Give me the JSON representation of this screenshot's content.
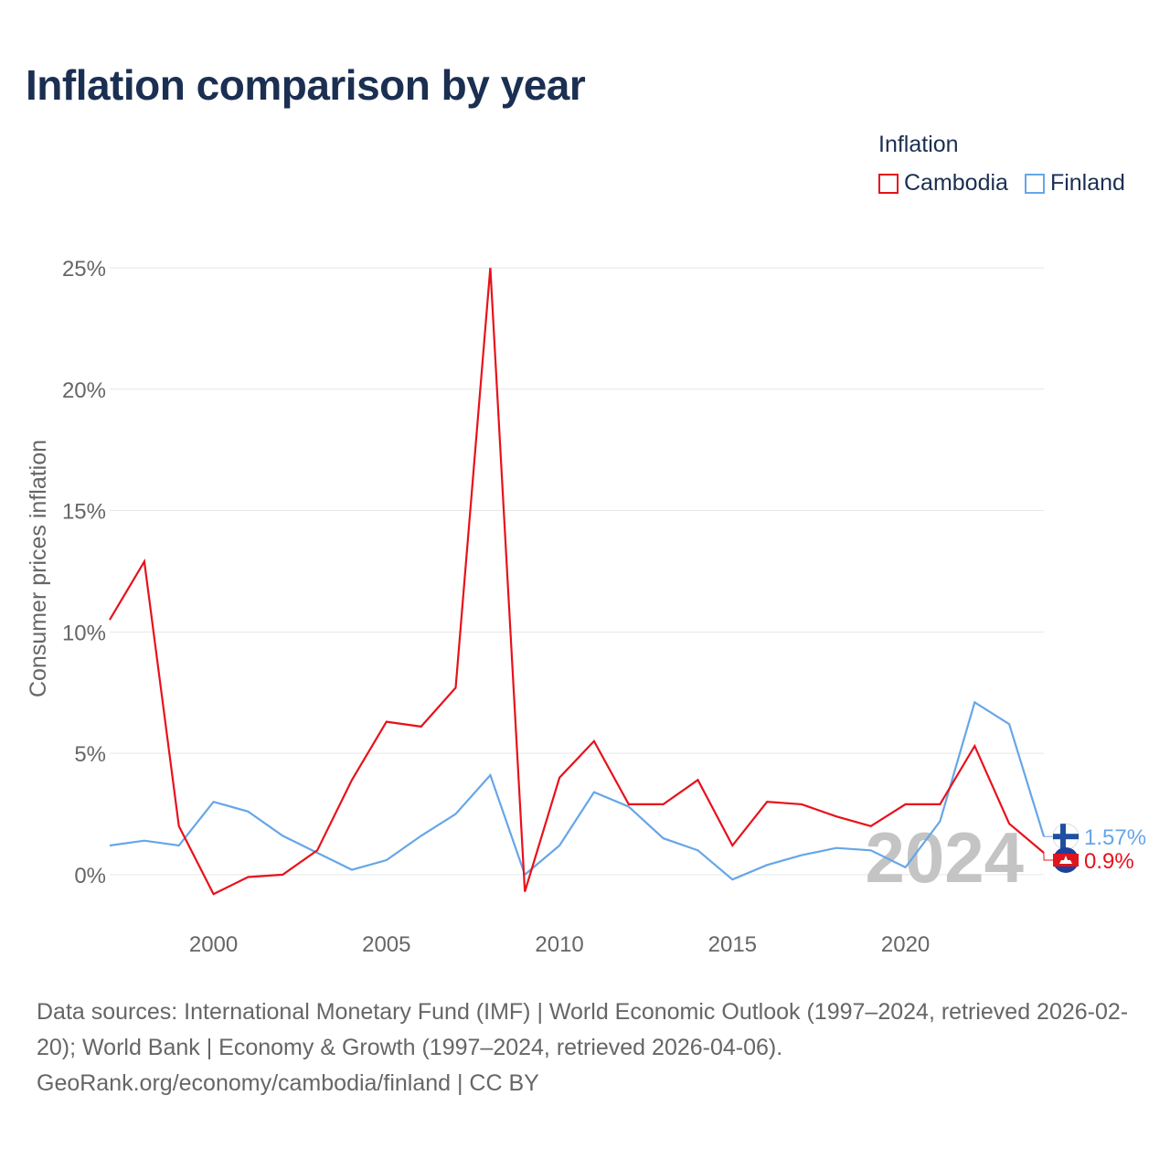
{
  "title": "Inflation comparison by year",
  "legend": {
    "title": "Inflation",
    "items": [
      {
        "label": "Cambodia",
        "color": "#e8111b"
      },
      {
        "label": "Finland",
        "color": "#66a6e8"
      }
    ]
  },
  "chart_data": {
    "type": "line",
    "title": "Inflation comparison by year",
    "xlabel": "",
    "ylabel": "Consumer prices inflation",
    "xlim": [
      1997,
      2024
    ],
    "ylim": [
      -2,
      25
    ],
    "y_ticks": [
      0,
      5,
      10,
      15,
      20,
      25
    ],
    "y_tick_labels": [
      "0%",
      "5%",
      "10%",
      "15%",
      "20%",
      "25%"
    ],
    "x_ticks": [
      2000,
      2005,
      2010,
      2015,
      2020
    ],
    "x_tick_labels": [
      "2000",
      "2005",
      "2010",
      "2015",
      "2020"
    ],
    "grid": true,
    "year_watermark": "2024",
    "x": [
      1997,
      1998,
      1999,
      2000,
      2001,
      2002,
      2003,
      2004,
      2005,
      2006,
      2007,
      2008,
      2009,
      2010,
      2011,
      2012,
      2013,
      2014,
      2015,
      2016,
      2017,
      2018,
      2019,
      2020,
      2021,
      2022,
      2023,
      2024
    ],
    "series": [
      {
        "name": "Cambodia",
        "color": "#e8111b",
        "values": [
          10.5,
          12.9,
          2.0,
          -0.8,
          -0.1,
          0.0,
          1.0,
          3.9,
          6.3,
          6.1,
          7.7,
          25.0,
          -0.7,
          4.0,
          5.5,
          2.9,
          2.9,
          3.9,
          1.2,
          3.0,
          2.9,
          2.4,
          2.0,
          2.9,
          2.9,
          5.3,
          2.1,
          0.9
        ],
        "end_label": "0.9%"
      },
      {
        "name": "Finland",
        "color": "#66a6e8",
        "values": [
          1.2,
          1.4,
          1.2,
          3.0,
          2.6,
          1.6,
          0.9,
          0.2,
          0.6,
          1.6,
          2.5,
          4.1,
          0.0,
          1.2,
          3.4,
          2.8,
          1.5,
          1.0,
          -0.2,
          0.4,
          0.8,
          1.1,
          1.0,
          0.3,
          2.2,
          7.1,
          6.2,
          1.57
        ],
        "end_label": "1.57%"
      }
    ]
  },
  "footer": {
    "sources": "Data sources: International Monetary Fund (IMF) | World Economic Outlook (1997–2024, retrieved 2026-02-20); World Bank | Economy & Growth (1997–2024, retrieved 2026-04-06).",
    "attribution": "GeoRank.org/economy/cambodia/finland | CC BY"
  }
}
